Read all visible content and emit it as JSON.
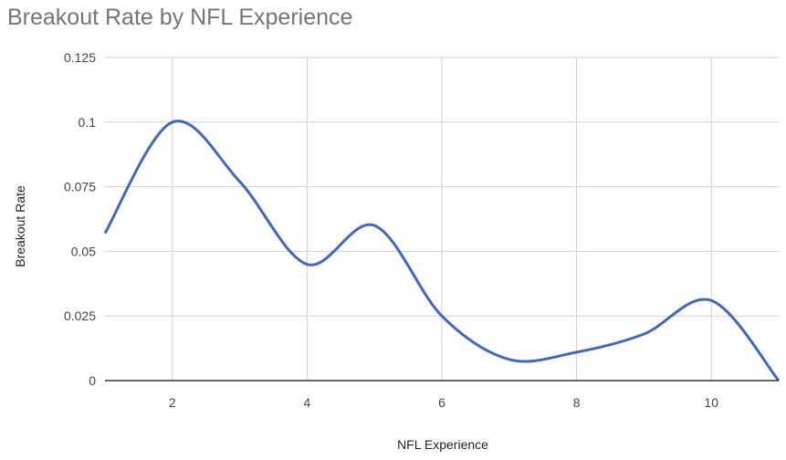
{
  "chart_data": {
    "type": "line",
    "title": "Breakout Rate by NFL Experience",
    "xlabel": "NFL Experience",
    "ylabel": "Breakout Rate",
    "x": [
      1,
      2,
      3,
      4,
      5,
      6,
      7,
      8,
      9,
      10,
      11
    ],
    "series": [
      {
        "name": "Breakout Rate",
        "values": [
          0.057,
          0.1,
          0.077,
          0.045,
          0.06,
          0.025,
          0.0082,
          0.011,
          0.018,
          0.031,
          0.0
        ],
        "color": "#3f67c6"
      }
    ],
    "xlim": [
      1,
      11
    ],
    "ylim": [
      0,
      0.125
    ],
    "xticks": [
      2,
      4,
      6,
      8,
      10
    ],
    "xtick_labels": [
      "2",
      "4",
      "6",
      "8",
      "10"
    ],
    "yticks": [
      0,
      0.025,
      0.05,
      0.075,
      0.1,
      0.125
    ],
    "ytick_labels": [
      "0",
      "0.025",
      "0.05",
      "0.075",
      "0.1",
      "0.125"
    ],
    "grid": true,
    "smooth": true,
    "legend": "none"
  }
}
